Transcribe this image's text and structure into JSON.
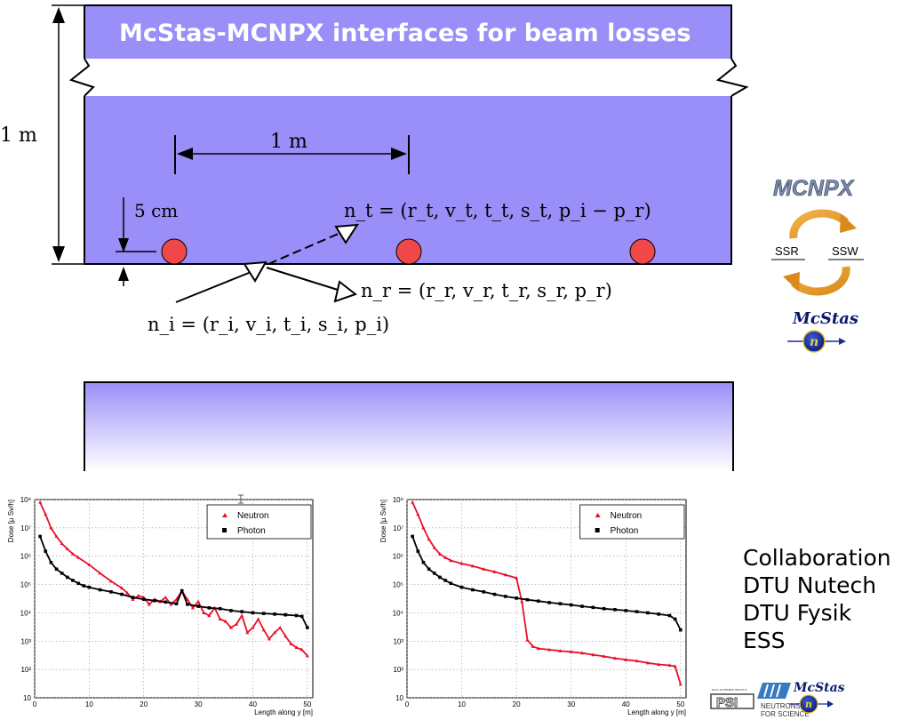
{
  "title": "McStas-MCNPX interfaces for beam losses",
  "colors": {
    "block": "#9a8ef8",
    "title_text": "#ffffff",
    "tube": "#f04848",
    "neutron": "#e8102a",
    "photon": "#000000"
  },
  "diagram": {
    "height_label": "1 m",
    "spacing_label": "1 m",
    "offset_label": "5 cm",
    "n_t": "n_t = (r_t, v_t, t_t, s_t, p_i − p_r)",
    "n_r": "n_r = (r_r, v_r, t_r, s_r, p_r)",
    "n_i": "n_i = (r_i, v_i, t_i, s_i, p_i)"
  },
  "mcnpx_logo": {
    "name": "MCNPX",
    "left_label": "SSR",
    "right_label": "SSW",
    "mcstas_label": "McStas",
    "badge_letter": "n",
    "icons": [
      "cycle-arrow-icon",
      "neutron-badge-icon"
    ]
  },
  "collaboration": [
    "Collaboration",
    "DTU Nutech",
    "DTU Fysik",
    "ESS"
  ],
  "bottom_logos": {
    "psi": "PSI",
    "psi_small": "PAUL SCHERRER INSTITUT",
    "ill_line1": "NEUTRONS",
    "ill_line2": "FOR SCIENCE",
    "mcstas": "McStas",
    "badge_letter": "n"
  },
  "chart_data": [
    {
      "type": "line",
      "xlabel": "Length along y [m]",
      "ylabel": "Dose [µ Sv/h]",
      "y_scale": "log",
      "xlim": [
        0,
        51
      ],
      "ylim": [
        10,
        100000000
      ],
      "x_ticks": [
        "0",
        "10",
        "20",
        "30",
        "40",
        "50"
      ],
      "y_ticks": [
        "10",
        "10²",
        "10³",
        "10⁴",
        "10⁵",
        "10⁶",
        "10⁷",
        "10⁸"
      ],
      "grid": true,
      "legend": "top-right",
      "series": [
        {
          "name": "Neutron",
          "x": [
            1,
            2,
            3,
            4,
            5,
            6,
            7,
            8,
            10,
            12,
            14,
            16,
            17,
            18,
            19,
            20,
            21,
            22,
            23,
            24,
            25,
            26,
            27,
            28,
            29,
            30,
            31,
            32,
            33,
            34,
            35,
            36,
            37,
            38,
            39,
            40,
            41,
            42,
            43,
            44,
            45,
            46,
            47,
            48,
            49,
            50
          ],
          "y": [
            80000000,
            30000000,
            10000000,
            5000000,
            2800000,
            1800000,
            1200000,
            900000,
            500000,
            250000,
            130000,
            75000,
            50000,
            30000,
            40000,
            35000,
            20000,
            30000,
            25000,
            35000,
            20000,
            30000,
            60000,
            30000,
            15000,
            25000,
            10000,
            8000,
            15000,
            6000,
            5000,
            3000,
            4000,
            8000,
            2000,
            3000,
            6000,
            2500,
            1200,
            2000,
            3000,
            1500,
            800,
            600,
            500,
            300
          ]
        },
        {
          "name": "Photon",
          "x": [
            1,
            2,
            3,
            4,
            5,
            6,
            7,
            8,
            9,
            10,
            12,
            14,
            16,
            18,
            20,
            22,
            24,
            26,
            27,
            28,
            30,
            32,
            34,
            36,
            38,
            40,
            42,
            44,
            46,
            48,
            49,
            50
          ],
          "y": [
            5000000,
            1500000,
            600000,
            350000,
            250000,
            180000,
            140000,
            110000,
            90000,
            80000,
            65000,
            55000,
            45000,
            35000,
            30000,
            27000,
            24000,
            21000,
            60000,
            20000,
            17000,
            15000,
            14000,
            12000,
            11000,
            10000,
            9500,
            9000,
            8500,
            8000,
            7500,
            3000
          ]
        }
      ]
    },
    {
      "type": "line",
      "xlabel": "Length along y [m]",
      "ylabel": "Dose [µ Sv/h]",
      "y_scale": "log",
      "xlim": [
        0,
        51
      ],
      "ylim": [
        10,
        100000000
      ],
      "x_ticks": [
        "0",
        "10",
        "20",
        "30",
        "40",
        "50"
      ],
      "y_ticks": [
        "10",
        "10²",
        "10³",
        "10⁴",
        "10⁵",
        "10⁶",
        "10⁷",
        "10⁸"
      ],
      "grid": true,
      "legend": "top-right",
      "series": [
        {
          "name": "Neutron",
          "x": [
            1,
            2,
            3,
            4,
            5,
            6,
            7,
            8,
            10,
            12,
            14,
            16,
            18,
            20,
            21,
            22,
            23,
            24,
            26,
            28,
            30,
            32,
            34,
            36,
            38,
            40,
            42,
            44,
            46,
            48,
            49,
            50
          ],
          "y": [
            80000000,
            30000000,
            10000000,
            4000000,
            2000000,
            1200000,
            900000,
            700000,
            550000,
            450000,
            350000,
            280000,
            220000,
            170000,
            25000,
            1100,
            650,
            550,
            500,
            450,
            420,
            380,
            330,
            290,
            250,
            220,
            200,
            170,
            150,
            140,
            130,
            30
          ]
        },
        {
          "name": "Photon",
          "x": [
            1,
            2,
            3,
            4,
            5,
            6,
            7,
            8,
            10,
            12,
            14,
            16,
            18,
            20,
            22,
            24,
            26,
            28,
            30,
            32,
            34,
            36,
            38,
            40,
            42,
            44,
            46,
            48,
            49,
            50
          ],
          "y": [
            5000000,
            1500000,
            600000,
            350000,
            250000,
            180000,
            140000,
            110000,
            80000,
            65000,
            55000,
            45000,
            38000,
            33000,
            29000,
            26000,
            23000,
            21000,
            19000,
            17000,
            15500,
            14000,
            13000,
            12000,
            11000,
            10000,
            9000,
            8000,
            6000,
            2500
          ]
        }
      ]
    }
  ]
}
